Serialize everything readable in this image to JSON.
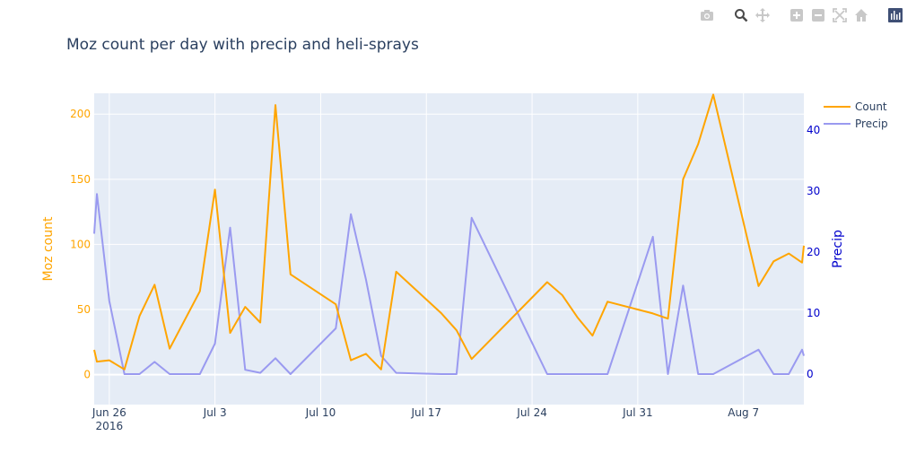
{
  "modebar": {
    "buttons": [
      "camera-icon",
      "zoom-icon",
      "pan-icon",
      "zoom-in-icon",
      "zoom-out-icon",
      "autoscale-icon",
      "home-icon",
      "plotly-logo-icon"
    ]
  },
  "chart_data": {
    "type": "line",
    "title": "Moz count per day with precip and heli-sprays",
    "xlabel": "",
    "x_ticks": [
      {
        "date": "2016-06-26",
        "label": "Jun 26",
        "sublabel": "2016"
      },
      {
        "date": "2016-07-03",
        "label": "Jul 3"
      },
      {
        "date": "2016-07-10",
        "label": "Jul 10"
      },
      {
        "date": "2016-07-17",
        "label": "Jul 17"
      },
      {
        "date": "2016-07-24",
        "label": "Jul 24"
      },
      {
        "date": "2016-07-31",
        "label": "Jul 31"
      },
      {
        "date": "2016-08-07",
        "label": "Aug 7"
      }
    ],
    "xlim": [
      "2016-06-25",
      "2016-08-11"
    ],
    "y_left": {
      "label": "Moz count",
      "range": [
        -23,
        216
      ],
      "ticks": [
        0,
        50,
        100,
        150,
        200
      ],
      "color": "#FFA500"
    },
    "y_right": {
      "label": "Precip",
      "range": [
        -5.0,
        46.0
      ],
      "ticks": [
        0,
        10,
        20,
        30,
        40
      ],
      "color": "#0000cc"
    },
    "legend": {
      "position": "top-right"
    },
    "grid": true,
    "series": [
      {
        "name": "Count",
        "color": "#FFA500",
        "axis": "left",
        "points": [
          [
            "2016-06-25",
            19
          ],
          [
            "2016-06-25",
            10
          ],
          [
            "2016-06-26",
            11
          ],
          [
            "2016-06-27",
            4
          ],
          [
            "2016-06-28",
            45
          ],
          [
            "2016-06-29",
            69
          ],
          [
            "2016-06-30",
            20
          ],
          [
            "2016-07-02",
            64
          ],
          [
            "2016-07-03",
            142
          ],
          [
            "2016-07-04",
            32
          ],
          [
            "2016-07-05",
            52
          ],
          [
            "2016-07-06",
            40
          ],
          [
            "2016-07-07",
            207
          ],
          [
            "2016-07-08",
            77
          ],
          [
            "2016-07-11",
            54
          ],
          [
            "2016-07-12",
            11
          ],
          [
            "2016-07-13",
            16
          ],
          [
            "2016-07-14",
            4
          ],
          [
            "2016-07-15",
            79
          ],
          [
            "2016-07-18",
            47
          ],
          [
            "2016-07-19",
            34
          ],
          [
            "2016-07-20",
            12
          ],
          [
            "2016-07-25",
            71
          ],
          [
            "2016-07-26",
            61
          ],
          [
            "2016-07-27",
            44
          ],
          [
            "2016-07-28",
            30
          ],
          [
            "2016-07-29",
            56
          ],
          [
            "2016-08-01",
            47
          ],
          [
            "2016-08-02",
            43
          ],
          [
            "2016-08-03",
            150
          ],
          [
            "2016-08-04",
            177
          ],
          [
            "2016-08-05",
            215
          ],
          [
            "2016-08-08",
            68
          ],
          [
            "2016-08-09",
            87
          ],
          [
            "2016-08-10",
            93
          ],
          [
            "2016-08-11",
            86
          ],
          [
            "2016-08-11",
            99
          ]
        ]
      },
      {
        "name": "Precip",
        "color": "#9a9af0",
        "axis": "right",
        "points": [
          [
            "2016-06-25",
            23
          ],
          [
            "2016-06-25",
            29.5
          ],
          [
            "2016-06-26",
            12
          ],
          [
            "2016-06-27",
            0
          ],
          [
            "2016-06-28",
            0
          ],
          [
            "2016-06-29",
            2
          ],
          [
            "2016-06-30",
            0
          ],
          [
            "2016-07-02",
            0
          ],
          [
            "2016-07-03",
            5
          ],
          [
            "2016-07-04",
            24
          ],
          [
            "2016-07-05",
            0.7
          ],
          [
            "2016-07-06",
            0.2
          ],
          [
            "2016-07-07",
            2.6
          ],
          [
            "2016-07-08",
            0
          ],
          [
            "2016-07-11",
            7.5
          ],
          [
            "2016-07-12",
            26.2
          ],
          [
            "2016-07-13",
            15.5
          ],
          [
            "2016-07-14",
            3
          ],
          [
            "2016-07-15",
            0.2
          ],
          [
            "2016-07-18",
            0
          ],
          [
            "2016-07-19",
            0
          ],
          [
            "2016-07-20",
            25.6
          ],
          [
            "2016-07-25",
            0
          ],
          [
            "2016-07-29",
            0
          ],
          [
            "2016-08-01",
            22.5
          ],
          [
            "2016-08-02",
            0
          ],
          [
            "2016-08-03",
            14.5
          ],
          [
            "2016-08-04",
            0
          ],
          [
            "2016-08-05",
            0
          ],
          [
            "2016-08-08",
            4
          ],
          [
            "2016-08-09",
            0
          ],
          [
            "2016-08-10",
            0
          ],
          [
            "2016-08-11",
            4
          ],
          [
            "2016-08-11",
            3
          ]
        ]
      }
    ]
  }
}
